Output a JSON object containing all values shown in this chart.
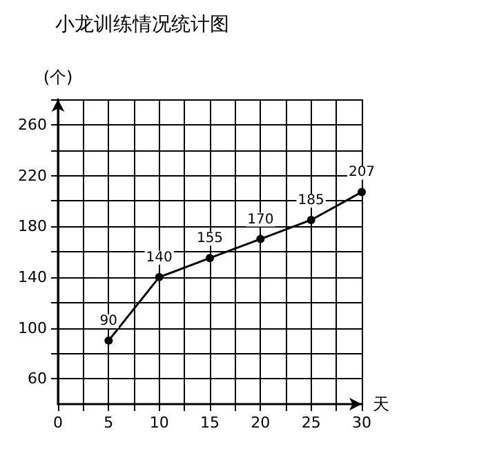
{
  "chart_data": {
    "type": "line",
    "title": "小龙训练情况统计图",
    "xlabel": "天",
    "ylabel": "(个)",
    "x": [
      5,
      10,
      15,
      20,
      25,
      30
    ],
    "series": [
      {
        "color": "#000000",
        "values": [
          90,
          140,
          155,
          170,
          185,
          207
        ]
      }
    ],
    "xlim": [
      0,
      30
    ],
    "xticks": [
      0,
      {
        "value": 2.5,
        "label": null
      },
      5,
      {
        "value": 7.5,
        "label": null
      },
      10,
      {
        "value": 12.5,
        "label": null
      },
      15,
      {
        "value": 17.5,
        "label": null
      },
      20,
      {
        "value": 22.5,
        "label": null
      },
      25,
      {
        "value": 27.5,
        "label": null
      },
      30
    ],
    "ylim": [
      40,
      280
    ],
    "yticks": [
      60,
      {
        "value": 80,
        "label": null
      },
      100,
      {
        "value": 120,
        "label": null
      },
      140,
      {
        "value": 160,
        "label": null
      },
      180,
      {
        "value": 200,
        "label": null
      },
      220,
      {
        "value": 240,
        "label": null
      },
      260,
      {
        "value": 280,
        "label": null
      }
    ],
    "grid": true,
    "marker": "circle",
    "data_labels": true,
    "line_style": "solid"
  }
}
